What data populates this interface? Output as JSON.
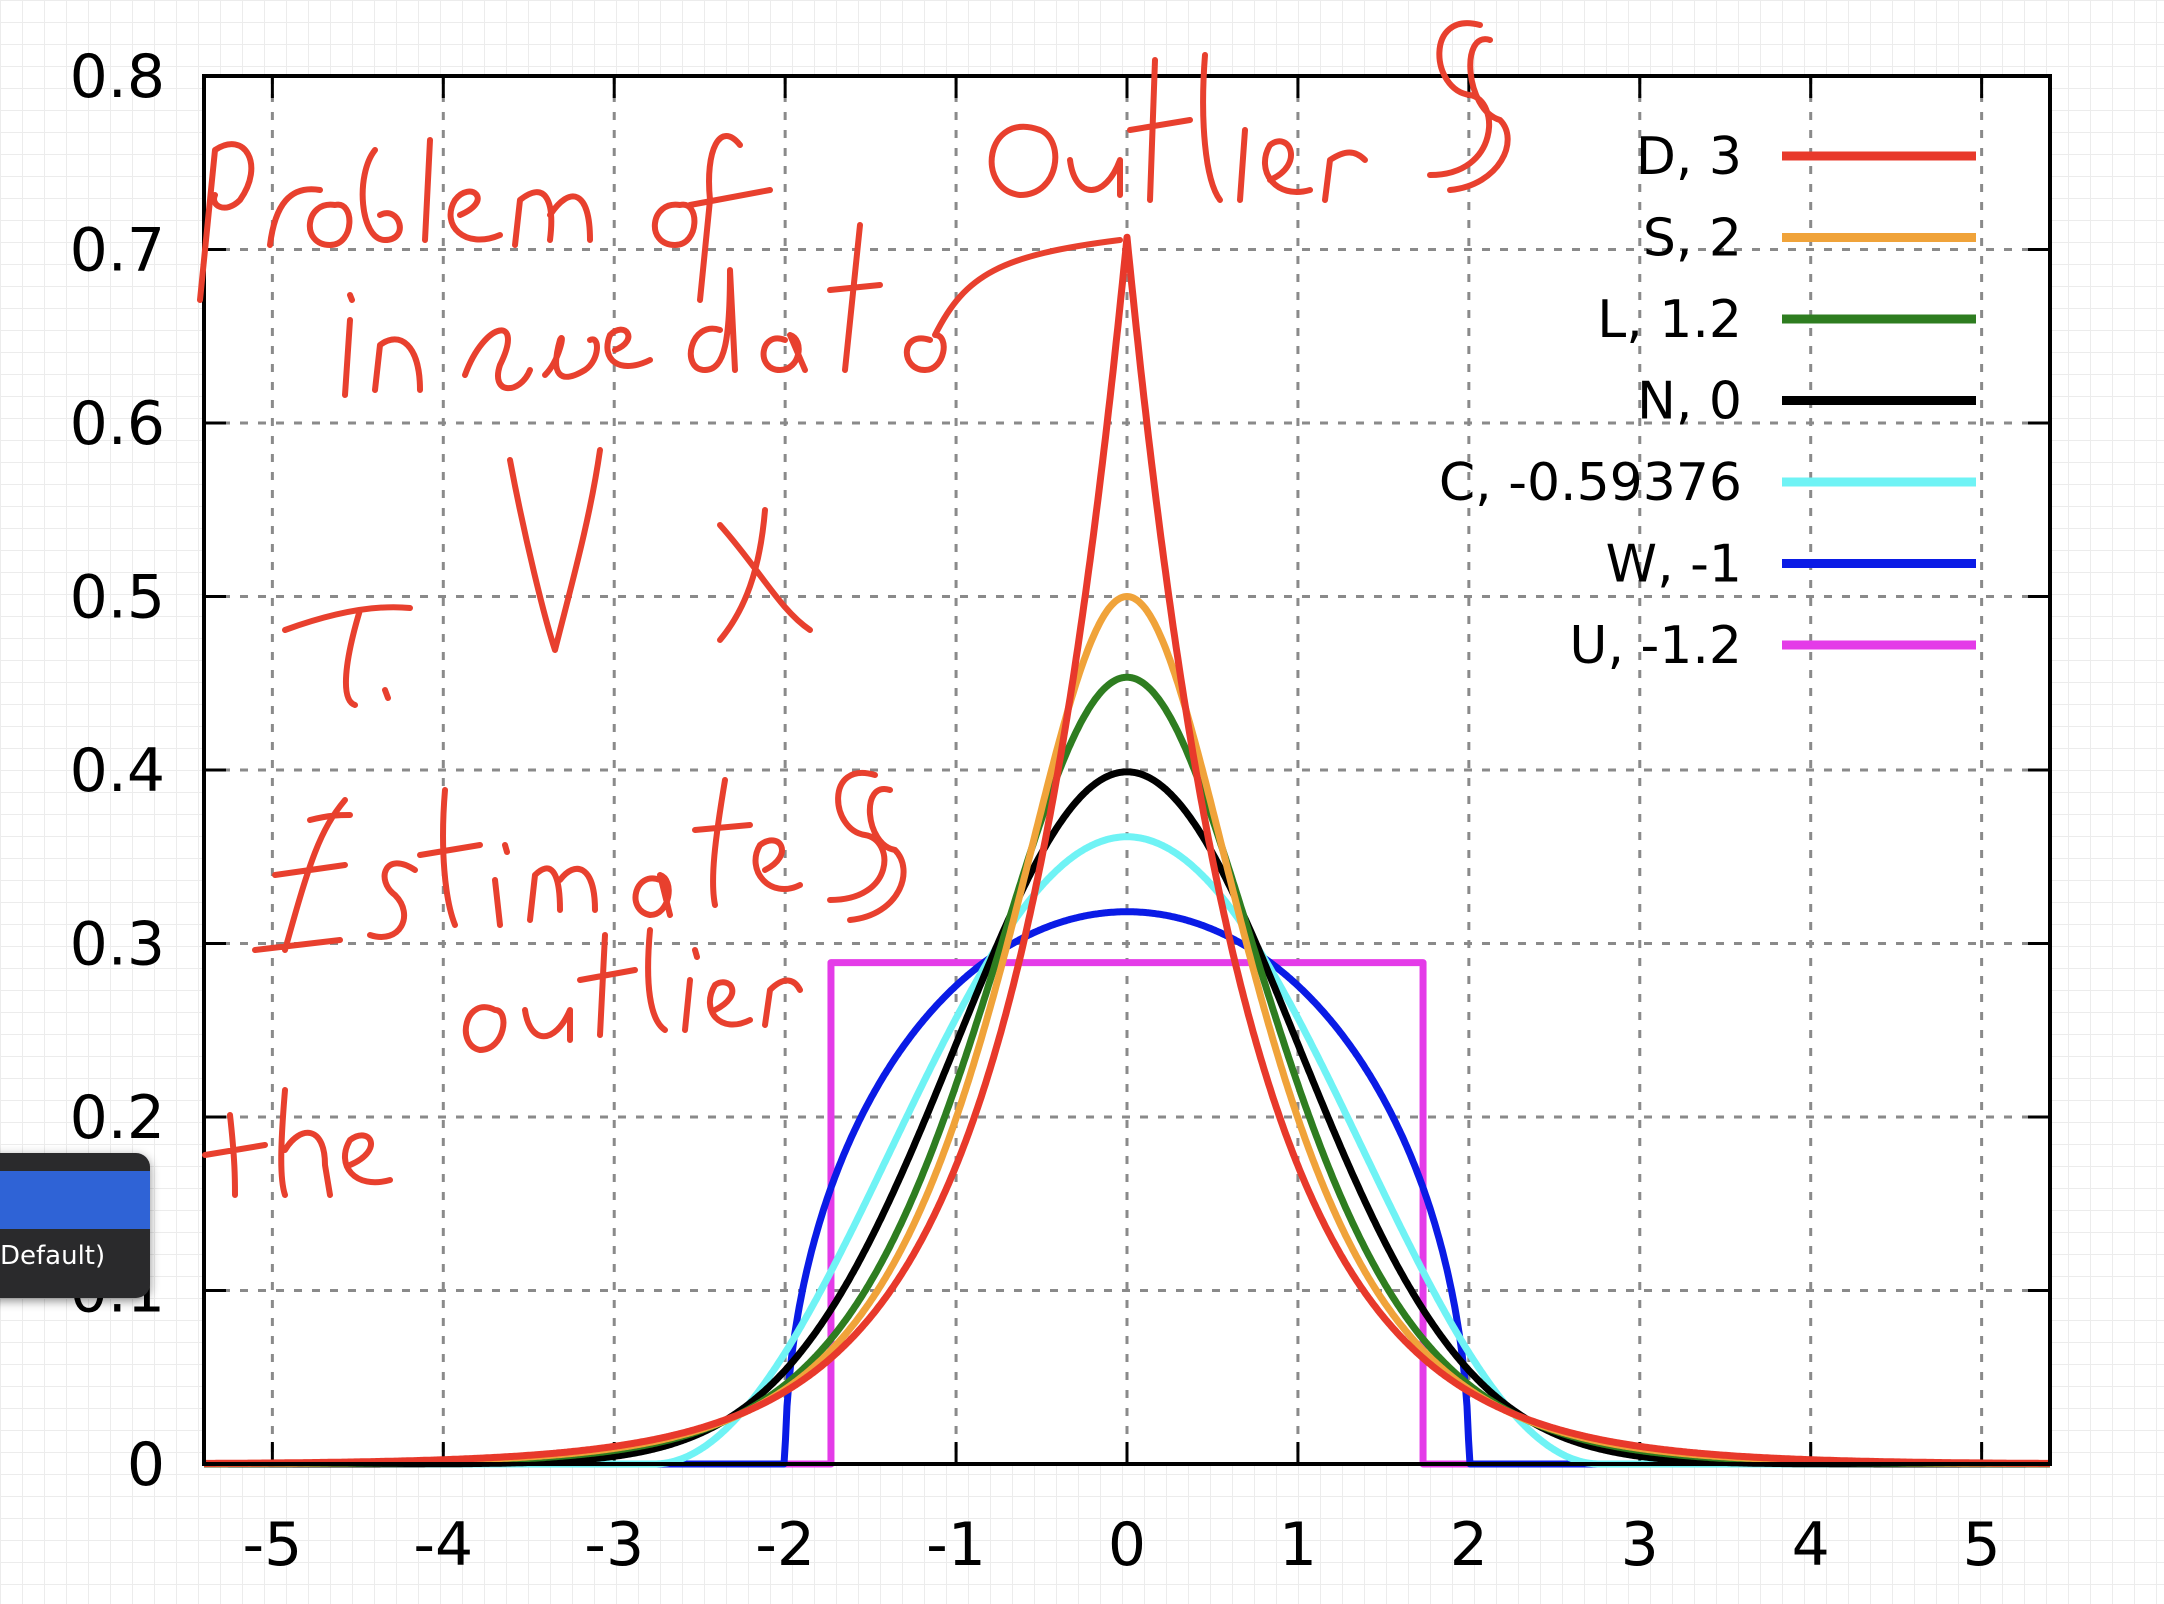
{
  "chart_data": {
    "type": "line",
    "xlim": [
      -5.4,
      5.4
    ],
    "ylim": [
      0,
      0.8
    ],
    "x_ticks": [
      "-5",
      "-4",
      "-3",
      "-2",
      "-1",
      "0",
      "1",
      "2",
      "3",
      "4",
      "5"
    ],
    "y_ticks": [
      "0",
      "0.1",
      "0.2",
      "0.3",
      "0.4",
      "0.5",
      "0.6",
      "0.7",
      "0.8"
    ],
    "grid": true,
    "legend_position": "top-right",
    "series": [
      {
        "name": "D,  3",
        "distribution": "laplace",
        "peak": 0.707,
        "color": "#e8392b"
      },
      {
        "name": "S,  2",
        "distribution": "hyperbolic-secant",
        "peak": 0.5,
        "color": "#f0a33a"
      },
      {
        "name": "L,  1.2",
        "distribution": "logistic",
        "peak": 0.453,
        "color": "#2e7d20"
      },
      {
        "name": "N,  0",
        "distribution": "normal",
        "peak": 0.399,
        "color": "#000000"
      },
      {
        "name": "C, -0.59376",
        "distribution": "raised-cosine",
        "peak": 0.361,
        "color": "#6ff3f5"
      },
      {
        "name": "W, -1",
        "distribution": "wigner-semicircle",
        "peak": 0.318,
        "color": "#0a1be6"
      },
      {
        "name": "U, -1.2",
        "distribution": "uniform",
        "peak": 0.289,
        "support": [
          -1.732,
          1.732
        ],
        "color": "#e43be8"
      }
    ]
  },
  "annotation": {
    "ink_color": "#e8402e",
    "text": [
      "problem of outliers",
      "in the data",
      "r. v X",
      "Estimate",
      "the outliers"
    ]
  },
  "popup": {
    "item_label": "Default)"
  }
}
